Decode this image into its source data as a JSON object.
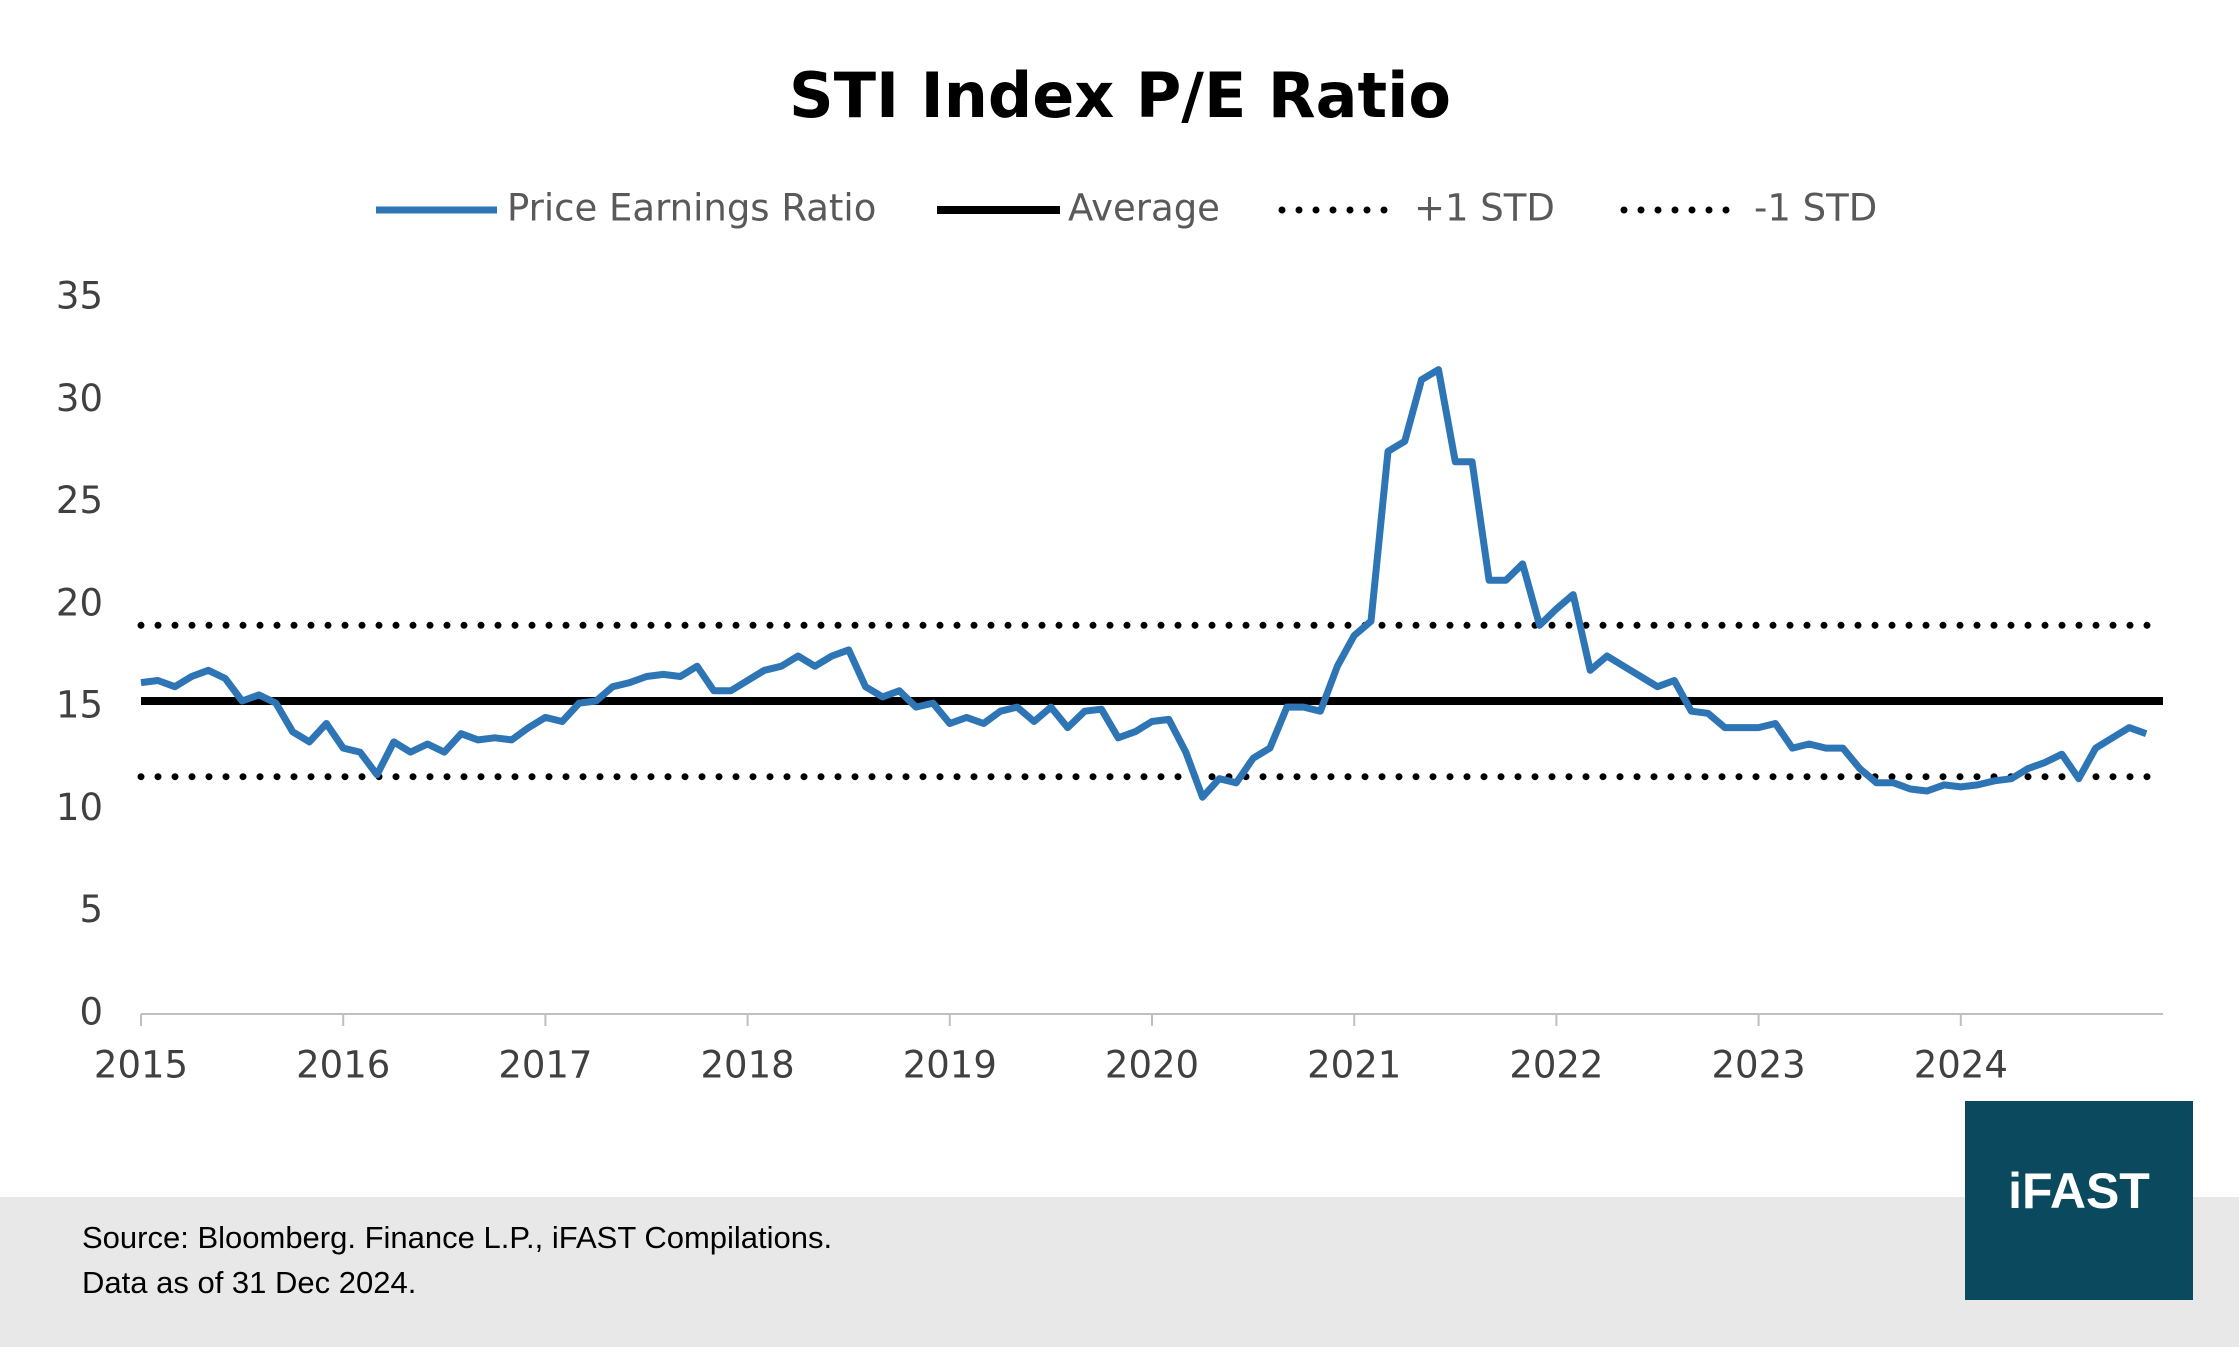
{
  "chart_data": {
    "type": "line",
    "title": "STI Index P/E Ratio",
    "legend": "top",
    "xlim": [
      2015,
      2025
    ],
    "xticks": [
      2015,
      2016,
      2017,
      2018,
      2019,
      2020,
      2021,
      2022,
      2023,
      2024
    ],
    "ylim": [
      0,
      35
    ],
    "yticks": [
      0,
      5,
      10,
      15,
      20,
      25,
      30,
      35
    ],
    "grid": false,
    "series": [
      {
        "name": "Price Earnings Ratio",
        "color": "#2e75b6",
        "style": "solid",
        "x": [
          2015,
          2015.083,
          2015.167,
          2015.25,
          2015.333,
          2015.417,
          2015.5,
          2015.583,
          2015.667,
          2015.75,
          2015.833,
          2015.917,
          2016,
          2016.083,
          2016.167,
          2016.25,
          2016.333,
          2016.417,
          2016.5,
          2016.583,
          2016.667,
          2016.75,
          2016.833,
          2016.917,
          2017,
          2017.083,
          2017.167,
          2017.25,
          2017.333,
          2017.417,
          2017.5,
          2017.583,
          2017.667,
          2017.75,
          2017.833,
          2017.917,
          2018,
          2018.083,
          2018.167,
          2018.25,
          2018.333,
          2018.417,
          2018.5,
          2018.583,
          2018.667,
          2018.75,
          2018.833,
          2018.917,
          2019,
          2019.083,
          2019.167,
          2019.25,
          2019.333,
          2019.417,
          2019.5,
          2019.583,
          2019.667,
          2019.75,
          2019.833,
          2019.917,
          2020,
          2020.083,
          2020.167,
          2020.25,
          2020.333,
          2020.417,
          2020.5,
          2020.583,
          2020.667,
          2020.75,
          2020.833,
          2020.917,
          2021,
          2021.083,
          2021.167,
          2021.25,
          2021.333,
          2021.417,
          2021.5,
          2021.583,
          2021.667,
          2021.75,
          2021.833,
          2021.917,
          2022,
          2022.083,
          2022.167,
          2022.25,
          2022.333,
          2022.417,
          2022.5,
          2022.583,
          2022.667,
          2022.75,
          2022.833,
          2022.917,
          2023,
          2023.083,
          2023.167,
          2023.25,
          2023.333,
          2023.417,
          2023.5,
          2023.583,
          2023.667,
          2023.75,
          2023.833,
          2023.917,
          2024,
          2024.083,
          2024.167,
          2024.25,
          2024.333,
          2024.417,
          2024.5,
          2024.583,
          2024.667,
          2024.75,
          2024.833,
          2024.917
        ],
        "values": [
          16.2,
          16.3,
          16.0,
          16.5,
          16.8,
          16.4,
          15.3,
          15.6,
          15.2,
          13.8,
          13.3,
          14.2,
          13.0,
          12.8,
          11.7,
          13.3,
          12.8,
          13.2,
          12.8,
          13.7,
          13.4,
          13.5,
          13.4,
          14.0,
          14.5,
          14.3,
          15.2,
          15.3,
          16.0,
          16.2,
          16.5,
          16.6,
          16.5,
          17.0,
          15.8,
          15.8,
          16.3,
          16.8,
          17.0,
          17.5,
          17.0,
          17.5,
          17.8,
          16.0,
          15.5,
          15.8,
          15.0,
          15.2,
          14.2,
          14.5,
          14.2,
          14.8,
          15.0,
          14.3,
          15.0,
          14.0,
          14.8,
          14.9,
          13.5,
          13.8,
          14.3,
          14.4,
          12.8,
          10.6,
          11.5,
          11.3,
          12.5,
          13.0,
          15.0,
          15.0,
          14.8,
          17.0,
          18.5,
          19.2,
          27.5,
          28.0,
          31.0,
          31.5,
          27.0,
          27.0,
          21.2,
          21.2,
          22.0,
          19.0,
          19.8,
          20.5,
          16.8,
          17.5,
          17.0,
          16.5,
          16.0,
          16.3,
          14.8,
          14.7,
          14.0,
          14.0,
          14.0,
          14.2,
          13.0,
          13.2,
          13.0,
          13.0,
          12.0,
          11.3,
          11.3,
          11.0,
          10.9,
          11.2,
          11.1,
          11.2,
          11.4,
          11.5,
          12.0,
          12.3,
          12.7,
          11.5,
          13.0,
          13.5,
          14.0,
          13.7
        ]
      },
      {
        "name": "Average",
        "color": "#000000",
        "style": "solid",
        "x": [
          2015,
          2025
        ],
        "values": [
          15.3,
          15.3
        ]
      },
      {
        "name": "+1 STD",
        "color": "#000000",
        "style": "dotted",
        "x": [
          2015,
          2025
        ],
        "values": [
          19.0,
          19.0
        ]
      },
      {
        "name": "-1 STD",
        "color": "#000000",
        "style": "dotted",
        "x": [
          2015,
          2025
        ],
        "values": [
          11.6,
          11.6
        ]
      }
    ]
  },
  "footer": {
    "source": "Source: Bloomberg. Finance L.P., iFAST Compilations.",
    "note": "Data as of 31 Dec 2024."
  },
  "logo": "iFAST"
}
